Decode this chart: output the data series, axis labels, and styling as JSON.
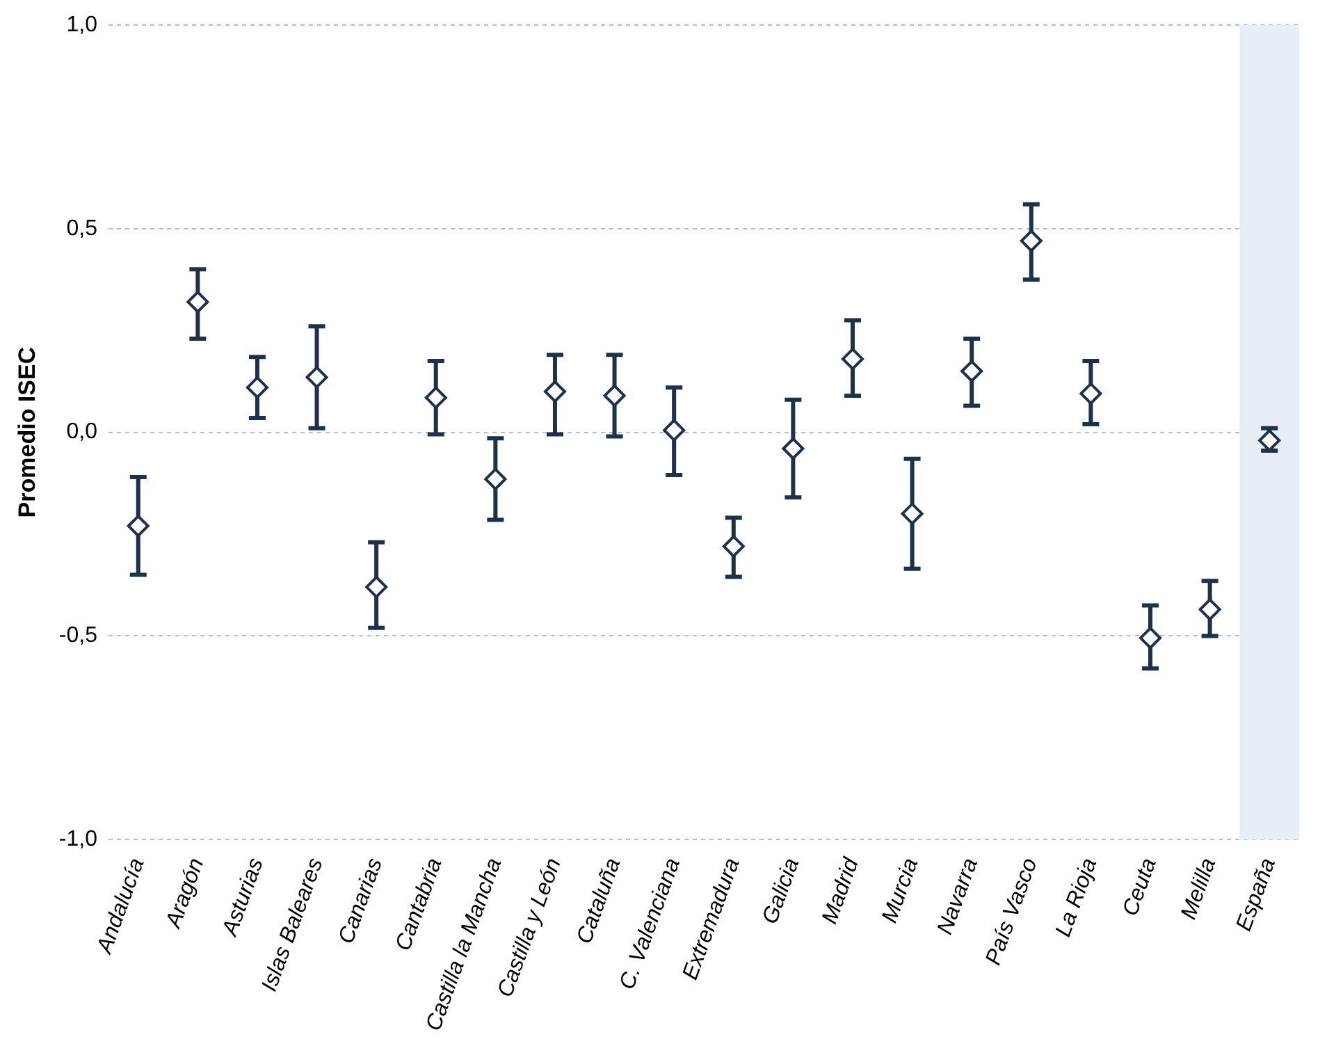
{
  "chart_data": {
    "type": "scatter",
    "ylabel": "Promedio ISEC",
    "categories": [
      "Andalucía",
      "Aragón",
      "Asturias",
      "Islas Baleares",
      "Canarias",
      "Cantabria",
      "Castilla la Mancha",
      "Castilla y León",
      "Cataluña",
      "C. Valenciana",
      "Extremadura",
      "Galicia",
      "Madrid",
      "Murcia",
      "Navarra",
      "País Vasco",
      "La Rioja",
      "Ceuta",
      "Melilla",
      "España"
    ],
    "values": [
      -0.23,
      0.32,
      0.11,
      0.135,
      -0.38,
      0.085,
      -0.115,
      0.1,
      0.09,
      0.005,
      -0.28,
      -0.04,
      0.18,
      -0.2,
      0.15,
      0.47,
      0.095,
      -0.505,
      -0.435,
      -0.02
    ],
    "errors": [
      [
        -0.35,
        -0.11
      ],
      [
        0.23,
        0.4
      ],
      [
        0.035,
        0.185
      ],
      [
        0.01,
        0.26
      ],
      [
        -0.48,
        -0.27
      ],
      [
        -0.005,
        0.175
      ],
      [
        -0.215,
        -0.015
      ],
      [
        -0.005,
        0.19
      ],
      [
        -0.01,
        0.19
      ],
      [
        -0.105,
        0.11
      ],
      [
        -0.355,
        -0.21
      ],
      [
        -0.16,
        0.08
      ],
      [
        0.09,
        0.275
      ],
      [
        -0.335,
        -0.065
      ],
      [
        0.065,
        0.23
      ],
      [
        0.375,
        0.56
      ],
      [
        0.02,
        0.175
      ],
      [
        -0.58,
        -0.425
      ],
      [
        -0.5,
        -0.365
      ],
      [
        -0.045,
        0.01
      ]
    ],
    "color": "#1f3049",
    "marker": "diamond",
    "ylim": [
      -1,
      1
    ],
    "yticks": [
      {
        "value": -1,
        "label": "-1,0"
      },
      {
        "value": -0.5,
        "label": "-0,5"
      },
      {
        "value": 0,
        "label": "0,0"
      },
      {
        "value": 0.5,
        "label": "0,5"
      },
      {
        "value": 1,
        "label": "1,0"
      }
    ],
    "grid": "y",
    "bands": [
      {
        "axis": "x",
        "from": "España",
        "to": "España",
        "color": "#e8eef6"
      }
    ]
  }
}
